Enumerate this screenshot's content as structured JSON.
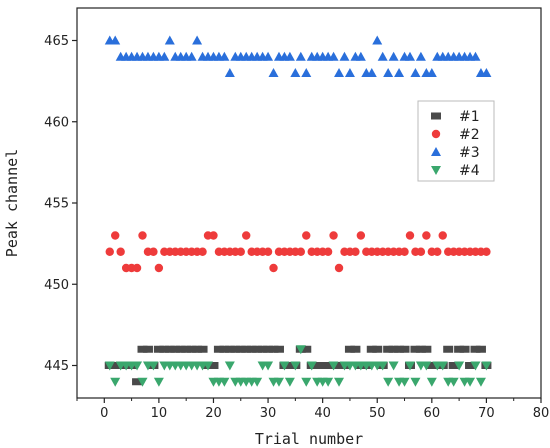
{
  "chart_data": {
    "type": "scatter",
    "xlabel": "Trial number",
    "ylabel": "Peak channel",
    "xlim": [
      -5,
      80
    ],
    "ylim": [
      443,
      467
    ],
    "xticks": [
      0,
      10,
      20,
      30,
      40,
      50,
      60,
      70,
      80
    ],
    "yticks": [
      445,
      450,
      455,
      460,
      465
    ],
    "grid": false,
    "legend_position": "right",
    "series": [
      {
        "name": "#1",
        "marker": "square",
        "color": "#4a4a4a",
        "x": [
          1,
          2,
          3,
          4,
          5,
          6,
          7,
          8,
          9,
          10,
          11,
          12,
          13,
          14,
          15,
          16,
          17,
          18,
          19,
          20,
          21,
          22,
          23,
          24,
          25,
          26,
          27,
          28,
          29,
          30,
          31,
          32,
          33,
          34,
          35,
          36,
          37,
          38,
          39,
          40,
          41,
          42,
          43,
          44,
          45,
          46,
          47,
          48,
          49,
          50,
          51,
          52,
          53,
          54,
          55,
          56,
          57,
          58,
          59,
          60,
          61,
          62,
          63,
          64,
          65,
          66,
          67,
          68,
          69,
          70
        ],
        "y": [
          445,
          445,
          445,
          445,
          445,
          444,
          446,
          446,
          445,
          446,
          446,
          446,
          446,
          446,
          446,
          446,
          446,
          446,
          445,
          445,
          446,
          446,
          446,
          446,
          446,
          446,
          446,
          446,
          446,
          446,
          446,
          446,
          445,
          445,
          445,
          446,
          446,
          445,
          445,
          445,
          445,
          445,
          445,
          445,
          446,
          446,
          445,
          445,
          446,
          446,
          445,
          446,
          446,
          446,
          446,
          445,
          446,
          446,
          446,
          445,
          445,
          445,
          446,
          445,
          446,
          446,
          445,
          446,
          446,
          445
        ]
      },
      {
        "name": "#2",
        "marker": "circle",
        "color": "#ee3b3b",
        "x": [
          1,
          2,
          3,
          4,
          5,
          6,
          7,
          8,
          9,
          10,
          11,
          12,
          13,
          14,
          15,
          16,
          17,
          18,
          19,
          20,
          21,
          22,
          23,
          24,
          25,
          26,
          27,
          28,
          29,
          30,
          31,
          32,
          33,
          34,
          35,
          36,
          37,
          38,
          39,
          40,
          41,
          42,
          43,
          44,
          45,
          46,
          47,
          48,
          49,
          50,
          51,
          52,
          53,
          54,
          55,
          56,
          57,
          58,
          59,
          60,
          61,
          62,
          63,
          64,
          65,
          66,
          67,
          68,
          69,
          70
        ],
        "y": [
          452,
          453,
          452,
          451,
          451,
          451,
          453,
          452,
          452,
          451,
          452,
          452,
          452,
          452,
          452,
          452,
          452,
          452,
          453,
          453,
          452,
          452,
          452,
          452,
          452,
          453,
          452,
          452,
          452,
          452,
          451,
          452,
          452,
          452,
          452,
          452,
          453,
          452,
          452,
          452,
          452,
          453,
          451,
          452,
          452,
          452,
          453,
          452,
          452,
          452,
          452,
          452,
          452,
          452,
          452,
          453,
          452,
          452,
          453,
          452,
          452,
          453,
          452,
          452,
          452,
          452,
          452,
          452,
          452,
          452
        ]
      },
      {
        "name": "#3",
        "marker": "triangle-up",
        "color": "#2a6fdb",
        "x": [
          1,
          2,
          3,
          4,
          5,
          6,
          7,
          8,
          9,
          10,
          11,
          12,
          13,
          14,
          15,
          16,
          17,
          18,
          19,
          20,
          21,
          22,
          23,
          24,
          25,
          26,
          27,
          28,
          29,
          30,
          31,
          32,
          33,
          34,
          35,
          36,
          37,
          38,
          39,
          40,
          41,
          42,
          43,
          44,
          45,
          46,
          47,
          48,
          49,
          50,
          51,
          52,
          53,
          54,
          55,
          56,
          57,
          58,
          59,
          60,
          61,
          62,
          63,
          64,
          65,
          66,
          67,
          68,
          69,
          70
        ],
        "y": [
          465,
          465,
          464,
          464,
          464,
          464,
          464,
          464,
          464,
          464,
          464,
          465,
          464,
          464,
          464,
          464,
          465,
          464,
          464,
          464,
          464,
          464,
          463,
          464,
          464,
          464,
          464,
          464,
          464,
          464,
          463,
          464,
          464,
          464,
          463,
          464,
          463,
          464,
          464,
          464,
          464,
          464,
          463,
          464,
          463,
          464,
          464,
          463,
          463,
          465,
          464,
          463,
          464,
          463,
          464,
          464,
          463,
          464,
          463,
          463,
          464,
          464,
          464,
          464,
          464,
          464,
          464,
          464,
          463,
          463
        ]
      },
      {
        "name": "#4",
        "marker": "triangle-down",
        "color": "#3aa76d",
        "x": [
          1,
          2,
          3,
          4,
          5,
          6,
          7,
          8,
          9,
          10,
          11,
          12,
          13,
          14,
          15,
          16,
          17,
          18,
          19,
          20,
          21,
          22,
          23,
          24,
          25,
          26,
          27,
          28,
          29,
          30,
          31,
          32,
          33,
          34,
          35,
          36,
          37,
          38,
          39,
          40,
          41,
          42,
          43,
          44,
          45,
          46,
          47,
          48,
          49,
          50,
          51,
          52,
          53,
          54,
          55,
          56,
          57,
          58,
          59,
          60,
          61,
          62,
          63,
          64,
          65,
          66,
          67,
          68,
          69,
          70
        ],
        "y": [
          445,
          444,
          445,
          445,
          445,
          445,
          444,
          445,
          445,
          444,
          445,
          445,
          445,
          445,
          445,
          445,
          445,
          445,
          445,
          444,
          444,
          444,
          445,
          444,
          444,
          444,
          444,
          444,
          445,
          445,
          444,
          444,
          445,
          444,
          445,
          446,
          444,
          445,
          444,
          444,
          444,
          445,
          444,
          445,
          445,
          445,
          445,
          445,
          445,
          445,
          445,
          444,
          445,
          444,
          444,
          445,
          444,
          445,
          445,
          444,
          445,
          445,
          444,
          444,
          445,
          444,
          444,
          445,
          444,
          445
        ]
      }
    ]
  }
}
